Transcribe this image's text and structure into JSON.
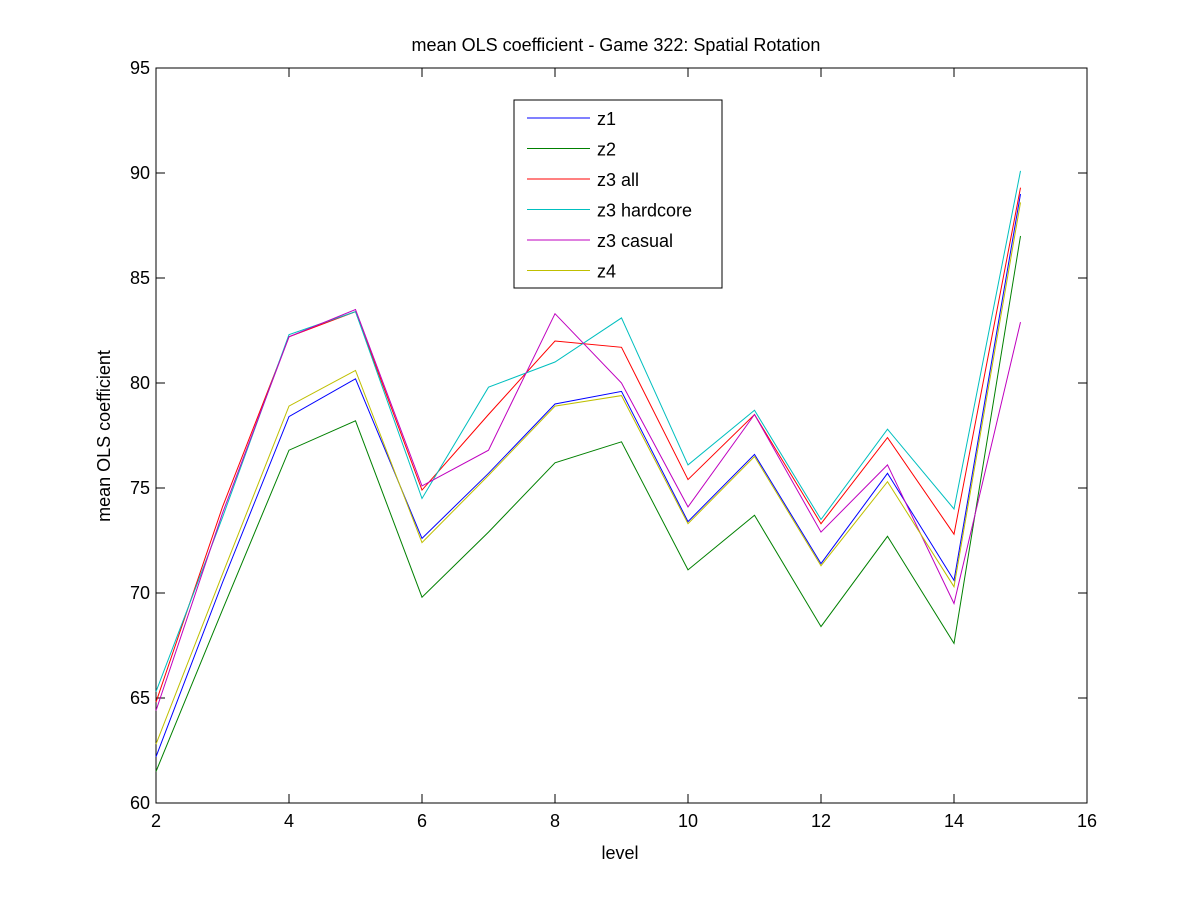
{
  "chart_data": {
    "type": "line",
    "title": "mean OLS coefficient - Game 322: Spatial Rotation",
    "xlabel": "level",
    "ylabel": "mean OLS coefficient",
    "xlim": [
      2,
      16
    ],
    "ylim": [
      60,
      95
    ],
    "xticks": [
      2,
      4,
      6,
      8,
      10,
      12,
      14,
      16
    ],
    "yticks": [
      60,
      65,
      70,
      75,
      80,
      85,
      90,
      95
    ],
    "x": [
      2,
      3,
      4,
      5,
      6,
      7,
      8,
      9,
      10,
      11,
      12,
      13,
      14,
      15
    ],
    "legend_position": "top-center",
    "grid": false,
    "series": [
      {
        "name": "z1",
        "color": "#0000ff",
        "values": [
          62.2,
          70.5,
          78.4,
          80.2,
          72.6,
          75.7,
          79.0,
          79.6,
          73.4,
          76.6,
          71.4,
          75.7,
          70.6,
          89.0
        ]
      },
      {
        "name": "z2",
        "color": "#008000",
        "values": [
          61.5,
          69.2,
          76.8,
          78.2,
          69.8,
          72.9,
          76.2,
          77.2,
          71.1,
          73.7,
          68.4,
          72.7,
          67.6,
          87.0
        ]
      },
      {
        "name": "z3 all",
        "color": "#ff0000",
        "values": [
          64.8,
          74.1,
          82.2,
          83.4,
          74.9,
          78.5,
          82.0,
          81.7,
          75.4,
          78.5,
          73.3,
          77.4,
          72.8,
          89.3
        ]
      },
      {
        "name": "z3 hardcore",
        "color": "#00bfbf",
        "values": [
          65.3,
          73.6,
          82.3,
          83.4,
          74.5,
          79.8,
          81.0,
          83.1,
          76.1,
          78.7,
          73.5,
          77.8,
          74.0,
          90.1
        ]
      },
      {
        "name": "z3 casual",
        "color": "#bf00bf",
        "values": [
          64.4,
          73.8,
          82.2,
          83.5,
          75.1,
          76.8,
          83.3,
          80.0,
          74.1,
          78.5,
          72.9,
          76.1,
          69.5,
          82.9
        ]
      },
      {
        "name": "z4",
        "color": "#bfbf00",
        "values": [
          62.8,
          70.9,
          78.9,
          80.6,
          72.4,
          75.6,
          78.9,
          79.4,
          73.3,
          76.5,
          71.3,
          75.3,
          70.3,
          88.6
        ]
      }
    ]
  }
}
